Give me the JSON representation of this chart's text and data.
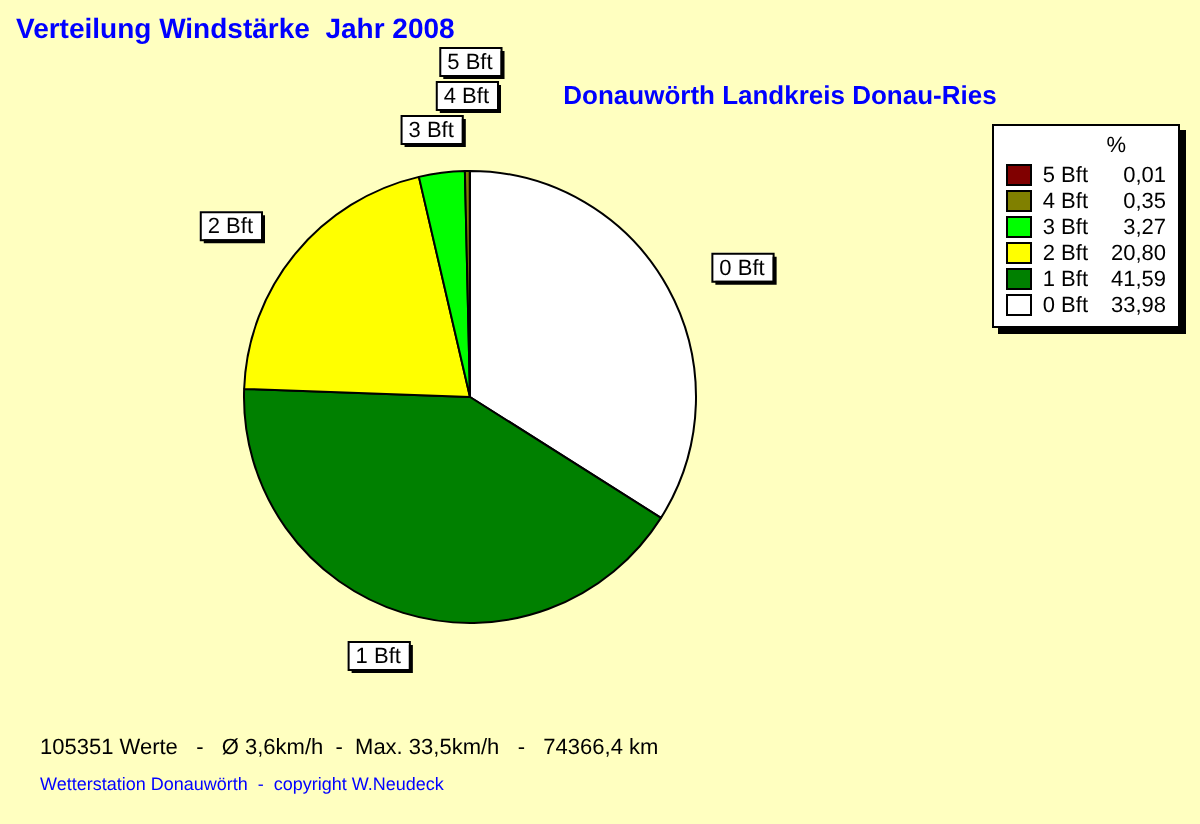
{
  "chart_data": {
    "type": "pie",
    "title": "Verteilung Windstärke  Jahr 2008",
    "subtitle": "Donauwörth Landkreis Donau-Ries",
    "legend_title": "%",
    "categories": [
      "0 Bft",
      "1 Bft",
      "2 Bft",
      "3 Bft",
      "4 Bft",
      "5 Bft"
    ],
    "values": [
      33.98,
      41.59,
      20.8,
      3.27,
      0.35,
      0.01
    ],
    "value_labels": [
      "33,98",
      "41,59",
      "20,80",
      "3,27",
      "0,35",
      "0,01"
    ],
    "colors": [
      "#ffffff",
      "#008000",
      "#ffff00",
      "#00ff00",
      "#808000",
      "#800000"
    ],
    "legend": "top right",
    "annotations": [
      "105351 Werte   -   Ø 3,6km/h  -  Max. 33,5km/h   -   74366,4 km",
      "Wetterstation Donauwörth  -  copyright W.Neudeck"
    ]
  }
}
